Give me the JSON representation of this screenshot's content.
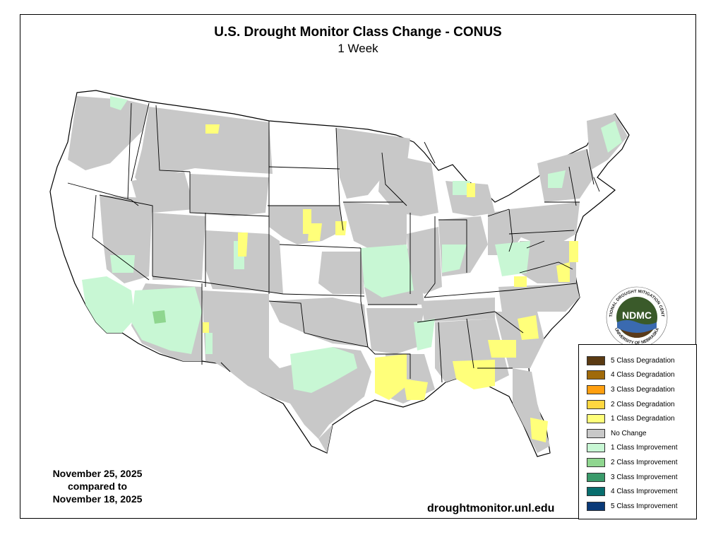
{
  "title": "U.S. Drought Monitor Class Change - CONUS",
  "subtitle": "1 Week",
  "dates": {
    "line1": "November 25, 2025",
    "line2": "compared to",
    "line3": "November 18, 2025"
  },
  "website": "droughtmonitor.unl.edu",
  "logo": {
    "text": "NDMC",
    "ring_top": "NATIONAL DROUGHT MITIGATION CENTER",
    "ring_bottom": "UNIVERSITY OF NEBRASKA"
  },
  "colors": {
    "no_change": "#c8c8c8",
    "deg1": "#ffff7a",
    "deg2": "#ffd740",
    "imp1": "#c8f7d4",
    "imp2": "#8fd68f",
    "state_border": "#000000"
  },
  "legend": {
    "items": [
      {
        "label": "5 Class Degradation",
        "color": "#5a3a12"
      },
      {
        "label": "4 Class Degradation",
        "color": "#a06a0a"
      },
      {
        "label": "3 Class Degradation",
        "color": "#ff9f10"
      },
      {
        "label": "2 Class Degradation",
        "color": "#ffd740"
      },
      {
        "label": "1 Class Degradation",
        "color": "#ffff7a"
      },
      {
        "label": "No Change",
        "color": "#c8c8c8"
      },
      {
        "label": "1 Class Improvement",
        "color": "#c8f7d4"
      },
      {
        "label": "2 Class Improvement",
        "color": "#8fd68f"
      },
      {
        "label": "3 Class Improvement",
        "color": "#3a9a6a"
      },
      {
        "label": "4 Class Improvement",
        "color": "#086e6e"
      },
      {
        "label": "5 Class Improvement",
        "color": "#0a3a78"
      }
    ]
  }
}
